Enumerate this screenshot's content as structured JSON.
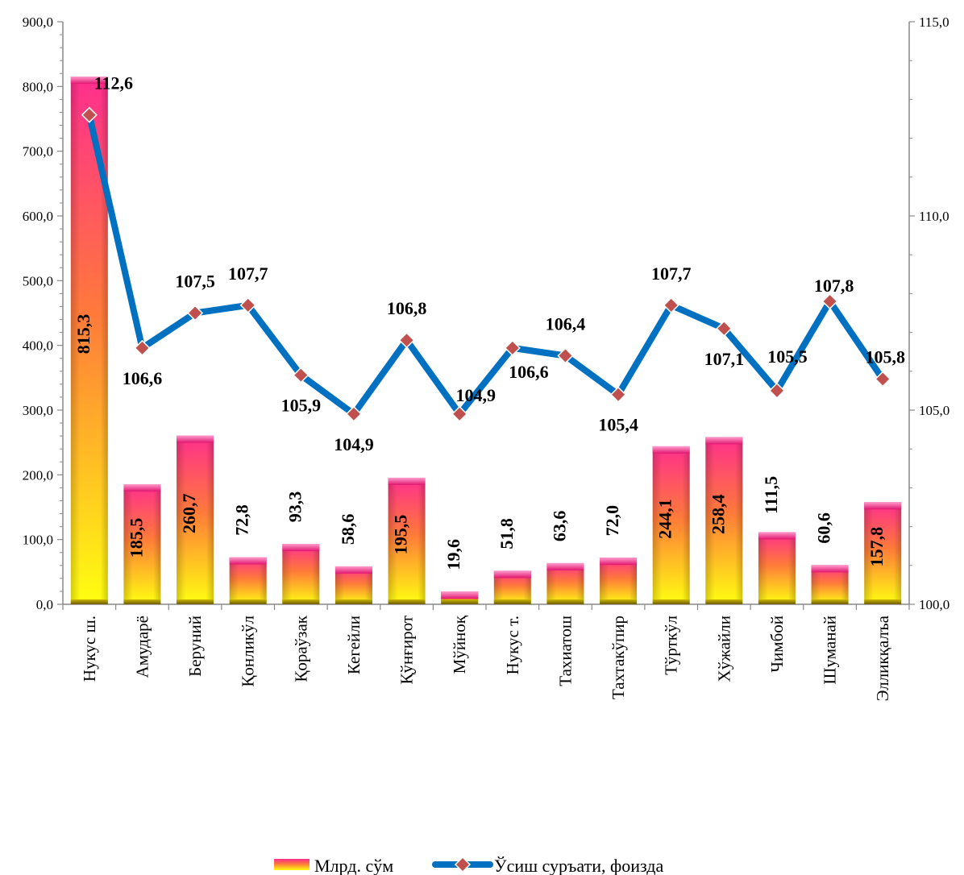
{
  "chart_data": {
    "type": "bar",
    "categories": [
      "Нукус ш.",
      "Амударё",
      "Беруний",
      "Қонликўл",
      "Қораўзак",
      "Кегейли",
      "Қўнғирот",
      "Мўйноқ",
      "Нукус т.",
      "Тахиатош",
      "Тахтакўпир",
      "Тўрткўл",
      "Хўжайли",
      "Чимбой",
      "Шуманай",
      "Элликқалъа"
    ],
    "series": [
      {
        "name": "Млрд. сўм",
        "type": "bar",
        "axis": "left",
        "values": [
          815.3,
          185.5,
          260.7,
          72.8,
          93.3,
          58.6,
          195.5,
          19.6,
          51.8,
          63.6,
          72.0,
          244.1,
          258.4,
          111.5,
          60.6,
          157.8
        ],
        "labels": [
          "815,3",
          "185,5",
          "260,7",
          "72,8",
          "93,3",
          "58,6",
          "195,5",
          "19,6",
          "51,8",
          "63,6",
          "72,0",
          "244,1",
          "258,4",
          "111,5",
          "60,6",
          "157,8"
        ]
      },
      {
        "name": "Ўсиш суръати, фоизда",
        "type": "line",
        "axis": "right",
        "values": [
          112.6,
          106.6,
          107.5,
          107.7,
          105.9,
          104.9,
          106.8,
          104.9,
          106.6,
          106.4,
          105.4,
          107.7,
          107.1,
          105.5,
          107.8,
          105.8
        ],
        "labels": [
          "112,6",
          "106,6",
          "107,5",
          "107,7",
          "105,9",
          "104,9",
          "106,8",
          "104,9",
          "106,6",
          "106,4",
          "105,4",
          "107,7",
          "107,1",
          "105,5",
          "107,8",
          "105,8"
        ]
      }
    ],
    "y_left": {
      "lim": [
        0,
        900
      ],
      "ticks": [
        "0,0",
        "100,0",
        "200,0",
        "300,0",
        "400,0",
        "500,0",
        "600,0",
        "700,0",
        "800,0",
        "900,0"
      ]
    },
    "y_right": {
      "lim": [
        100,
        115
      ],
      "ticks": [
        "100,0",
        "105,0",
        "110,0",
        "115,0"
      ]
    },
    "grid": false,
    "legend_position": "bottom",
    "colors": {
      "bar_top": "#ff2e8e",
      "bar_bottom": "#ffff00",
      "line": "#0070c0",
      "marker": "#c0504d"
    }
  }
}
